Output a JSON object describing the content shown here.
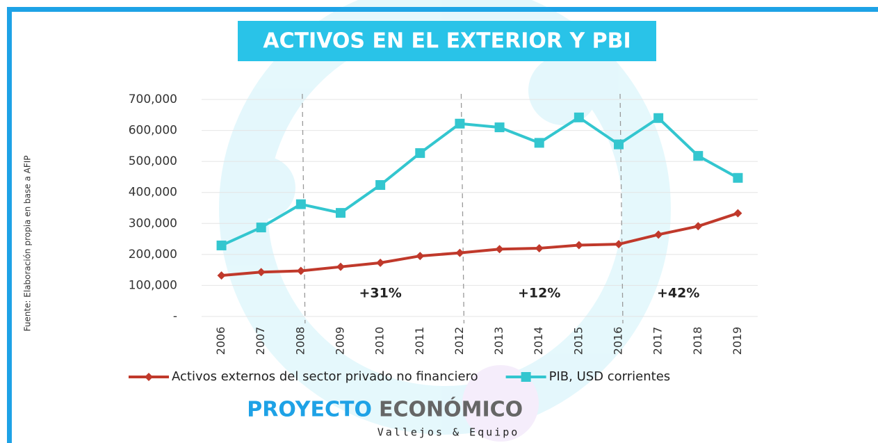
{
  "chart_data": {
    "type": "line",
    "title": "ACTIVOS EN EL EXTERIOR Y PBI",
    "source": "Fuente: Elaboración propia  en base a AFIP",
    "categories": [
      "2006",
      "2007",
      "2008",
      "2009",
      "2010",
      "2011",
      "2012",
      "2013",
      "2014",
      "2015",
      "2016",
      "2017",
      "2018",
      "2019"
    ],
    "series": [
      {
        "name": "Activos externos del sector privado no financiero",
        "color": "#c0392b",
        "marker": "diamond",
        "values": [
          132000,
          143000,
          147000,
          160000,
          173000,
          195000,
          205000,
          217000,
          220000,
          230000,
          233000,
          264000,
          291000,
          333000
        ]
      },
      {
        "name": "PIB, USD corrientes",
        "color": "#33c6cf",
        "marker": "square",
        "values": [
          229000,
          287000,
          362000,
          334000,
          424000,
          527000,
          622000,
          610000,
          560000,
          642000,
          555000,
          640000,
          518000,
          447000
        ]
      }
    ],
    "ylim": [
      0,
      700000
    ],
    "yticks": [
      {
        "value": 0,
        "label": "-"
      },
      {
        "value": 100000,
        "label": "100,000"
      },
      {
        "value": 200000,
        "label": "200,000"
      },
      {
        "value": 300000,
        "label": "300,000"
      },
      {
        "value": 400000,
        "label": "400,000"
      },
      {
        "value": 500000,
        "label": "500,000"
      },
      {
        "value": 600000,
        "label": "600,000"
      },
      {
        "value": 700000,
        "label": "700,000"
      }
    ],
    "grid": true,
    "legend": "bottom",
    "annotations": [
      "+31%",
      "+12%",
      "+42%"
    ],
    "logo": {
      "brand1": "PROYECTO",
      "brand2": "ECONÓMICO",
      "tagline": "Vallejos & Equipo"
    }
  }
}
